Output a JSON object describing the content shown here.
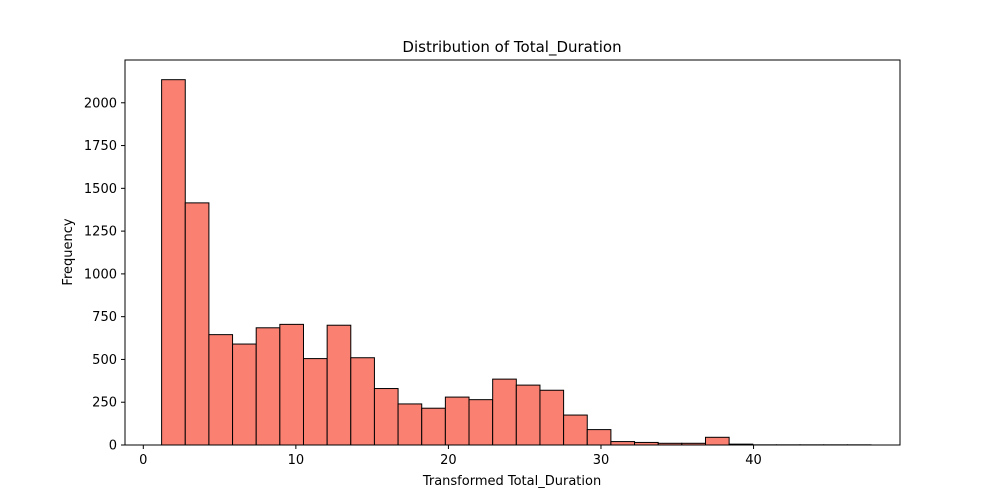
{
  "chart_data": {
    "type": "bar",
    "title": "Distribution of Total_Duration",
    "xlabel": "Transformed Total_Duration",
    "ylabel": "Frequency",
    "xlim": [
      -1.2,
      49.6
    ],
    "ylim": [
      0,
      2250
    ],
    "x_ticks": [
      0,
      10,
      20,
      30,
      40
    ],
    "y_ticks": [
      0,
      250,
      500,
      750,
      1000,
      1250,
      1500,
      1750,
      2000
    ],
    "bar_color": "#fa8072",
    "edge_color": "#000000",
    "bins": [
      {
        "x0": 1.2,
        "x1": 2.75,
        "value": 2135
      },
      {
        "x0": 2.75,
        "x1": 4.3,
        "value": 1415
      },
      {
        "x0": 4.3,
        "x1": 5.85,
        "value": 645
      },
      {
        "x0": 5.85,
        "x1": 7.4,
        "value": 590
      },
      {
        "x0": 7.4,
        "x1": 8.95,
        "value": 685
      },
      {
        "x0": 8.95,
        "x1": 10.5,
        "value": 705
      },
      {
        "x0": 10.5,
        "x1": 12.05,
        "value": 505
      },
      {
        "x0": 12.05,
        "x1": 13.6,
        "value": 700
      },
      {
        "x0": 13.6,
        "x1": 15.15,
        "value": 510
      },
      {
        "x0": 15.15,
        "x1": 16.7,
        "value": 330
      },
      {
        "x0": 16.7,
        "x1": 18.25,
        "value": 240
      },
      {
        "x0": 18.25,
        "x1": 19.8,
        "value": 215
      },
      {
        "x0": 19.8,
        "x1": 21.35,
        "value": 280
      },
      {
        "x0": 21.35,
        "x1": 22.9,
        "value": 265
      },
      {
        "x0": 22.9,
        "x1": 24.45,
        "value": 385
      },
      {
        "x0": 24.45,
        "x1": 26.0,
        "value": 350
      },
      {
        "x0": 26.0,
        "x1": 27.55,
        "value": 320
      },
      {
        "x0": 27.55,
        "x1": 29.1,
        "value": 175
      },
      {
        "x0": 29.1,
        "x1": 30.65,
        "value": 90
      },
      {
        "x0": 30.65,
        "x1": 32.2,
        "value": 20
      },
      {
        "x0": 32.2,
        "x1": 33.75,
        "value": 15
      },
      {
        "x0": 33.75,
        "x1": 35.3,
        "value": 10
      },
      {
        "x0": 35.3,
        "x1": 36.85,
        "value": 10
      },
      {
        "x0": 36.85,
        "x1": 38.4,
        "value": 45
      },
      {
        "x0": 38.4,
        "x1": 39.95,
        "value": 5
      },
      {
        "x0": 39.95,
        "x1": 41.5,
        "value": 1
      },
      {
        "x0": 41.5,
        "x1": 43.05,
        "value": 1
      },
      {
        "x0": 43.05,
        "x1": 44.6,
        "value": 1
      },
      {
        "x0": 44.6,
        "x1": 46.15,
        "value": 1
      },
      {
        "x0": 46.15,
        "x1": 47.7,
        "value": 1
      }
    ]
  }
}
